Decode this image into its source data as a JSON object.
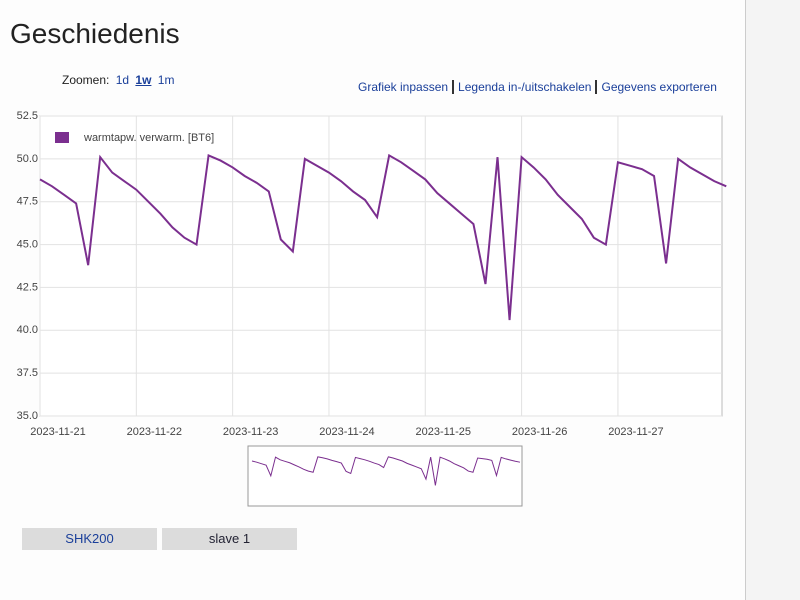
{
  "header": {
    "title": "Geschiedenis"
  },
  "zoom": {
    "label": "Zoomen:",
    "options": [
      "1d",
      "1w",
      "1m"
    ]
  },
  "actions": [
    "Grafiek inpassen",
    "Legenda in-/uitschakelen",
    "Gegevens exporteren"
  ],
  "chart_data": {
    "type": "line",
    "categories": [
      "2023-11-21",
      null,
      null,
      null,
      null,
      null,
      null,
      null,
      "2023-11-22",
      null,
      null,
      null,
      null,
      null,
      null,
      null,
      "2023-11-23",
      null,
      null,
      null,
      null,
      null,
      null,
      null,
      "2023-11-24",
      null,
      null,
      null,
      null,
      null,
      null,
      null,
      "2023-11-25",
      null,
      null,
      null,
      null,
      null,
      null,
      null,
      "2023-11-26",
      null,
      null,
      null,
      null,
      null,
      null,
      null,
      "2023-11-27",
      null,
      null,
      null,
      null,
      null,
      null,
      null,
      null,
      null
    ],
    "series": [
      {
        "name": "warmtapw. verwarm. [BT6]",
        "color": "#7b2f8f",
        "values": [
          48.8,
          48.4,
          47.9,
          47.4,
          43.8,
          50.1,
          49.2,
          48.7,
          48.2,
          47.5,
          46.8,
          46.0,
          45.4,
          45.0,
          50.2,
          49.9,
          49.5,
          49.0,
          48.6,
          48.1,
          45.3,
          44.6,
          50.0,
          49.6,
          49.2,
          48.7,
          48.1,
          47.6,
          46.6,
          50.2,
          49.8,
          49.3,
          48.8,
          48.0,
          47.4,
          46.8,
          46.2,
          42.7,
          50.1,
          40.6,
          50.1,
          49.5,
          48.8,
          47.9,
          47.2,
          46.5,
          45.4,
          45.0,
          49.8,
          49.6,
          49.4,
          49.0,
          43.9,
          50.0,
          49.5,
          49.1,
          48.7,
          48.4
        ]
      }
    ],
    "ylim": [
      35,
      52.5
    ],
    "yticks": [
      {
        "value": 35,
        "label": "35.0"
      },
      37.5,
      {
        "value": 40,
        "label": "40.0"
      },
      42.5,
      {
        "value": 45,
        "label": "45.0"
      },
      47.5,
      {
        "value": 50,
        "label": "50.0"
      },
      52.5
    ],
    "grid": true,
    "legend": "top-left"
  },
  "tabs": [
    "SHK200",
    "slave 1"
  ]
}
